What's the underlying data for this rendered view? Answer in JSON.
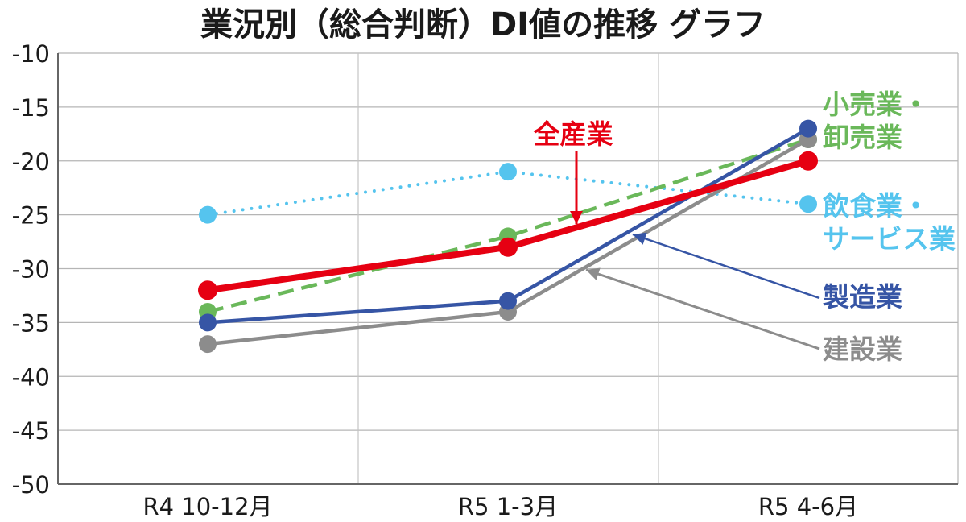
{
  "chart_data": {
    "type": "line",
    "title": "業況別（総合判断）DI値の推移 グラフ",
    "xlabel": "",
    "ylabel": "",
    "categories": [
      "R4 10-12月",
      "R5 1-3月",
      "R5 4-6月"
    ],
    "ylim": [
      -50,
      -10
    ],
    "yticks": [
      -10,
      -15,
      -20,
      -25,
      -30,
      -35,
      -40,
      -45,
      -50
    ],
    "ytick_labels": [
      "-10",
      "-15",
      "-20",
      "-25",
      "-30",
      "-35",
      "-40",
      "-45",
      "-50"
    ],
    "grid": true,
    "series": [
      {
        "key": "food",
        "name_lines": [
          "飲食業・",
          "サービス業"
        ],
        "values": [
          -25,
          -21,
          -24
        ],
        "color": "#55c4ee",
        "style": "dotted"
      },
      {
        "key": "retail",
        "name_lines": [
          "小売業・",
          "卸売業"
        ],
        "values": [
          -34,
          -27,
          -18
        ],
        "color": "#6ab85a",
        "style": "dashed"
      },
      {
        "key": "construction",
        "name_lines": [
          "建設業"
        ],
        "values": [
          -37,
          -34,
          -18
        ],
        "color": "#8c8c8c",
        "style": "solid"
      },
      {
        "key": "manufacturing",
        "name_lines": [
          "製造業"
        ],
        "values": [
          -35,
          -33,
          -17
        ],
        "color": "#3655a5",
        "style": "solid"
      },
      {
        "key": "all",
        "name_lines": [
          "全産業"
        ],
        "values": [
          -32,
          -28,
          -20
        ],
        "color": "#e60012",
        "style": "solid-bold"
      }
    ]
  }
}
